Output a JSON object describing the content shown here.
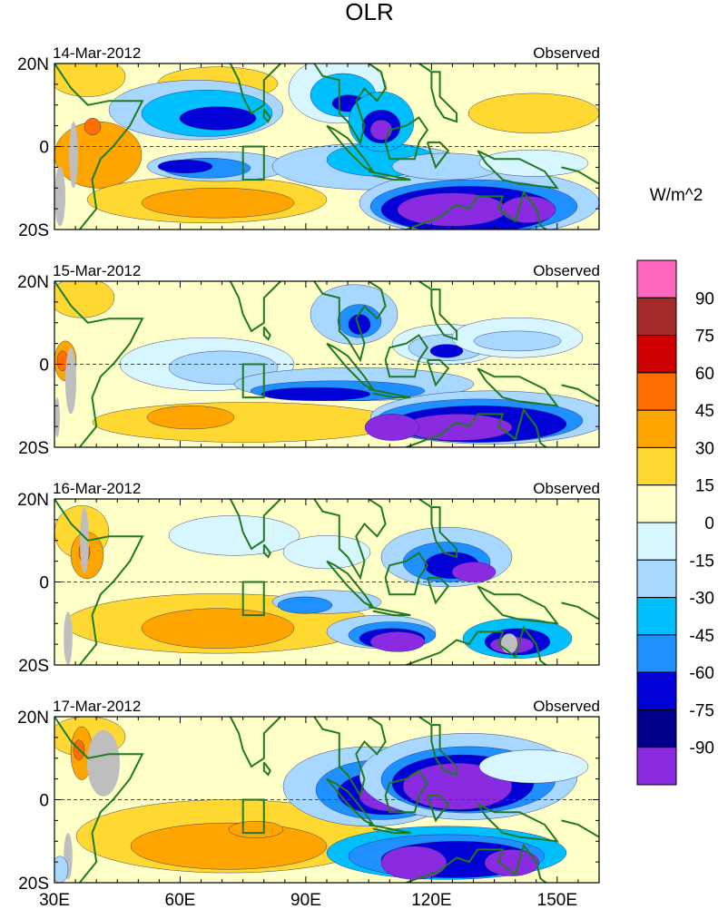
{
  "chart_data": {
    "type": "heatmap",
    "title": "OLR",
    "units": "W/m^2",
    "x_ticks": [
      {
        "value": 30,
        "label": "30E"
      },
      {
        "value": 60,
        "label": "60E"
      },
      {
        "value": 90,
        "label": "90E"
      },
      {
        "value": 120,
        "label": "120E"
      },
      {
        "value": 150,
        "label": "150E"
      }
    ],
    "xlim": [
      30,
      160
    ],
    "ylim": [
      -20,
      20
    ],
    "y_ticks": [
      {
        "value": 20,
        "label": "20N"
      },
      {
        "value": 0,
        "label": "0"
      },
      {
        "value": -20,
        "label": "20S"
      }
    ],
    "panels": [
      {
        "date": "14-Mar-2012",
        "label": "Observed"
      },
      {
        "date": "15-Mar-2012",
        "label": "Observed"
      },
      {
        "date": "16-Mar-2012",
        "label": "Observed"
      },
      {
        "date": "17-Mar-2012",
        "label": "Observed"
      }
    ],
    "colorbar": {
      "labels": [
        "90",
        "75",
        "60",
        "45",
        "30",
        "15",
        "0",
        "-15",
        "-30",
        "-45",
        "-60",
        "-75",
        "-90"
      ],
      "colors": [
        "#ff66bb",
        "#a52a2a",
        "#d10000",
        "#ff6e00",
        "#ffa500",
        "#ffd832",
        "#ffffc8",
        "#d7f6ff",
        "#a8d8ff",
        "#00bfff",
        "#1e90ff",
        "#0000d7",
        "#00008c",
        "#8a2be2"
      ]
    }
  }
}
